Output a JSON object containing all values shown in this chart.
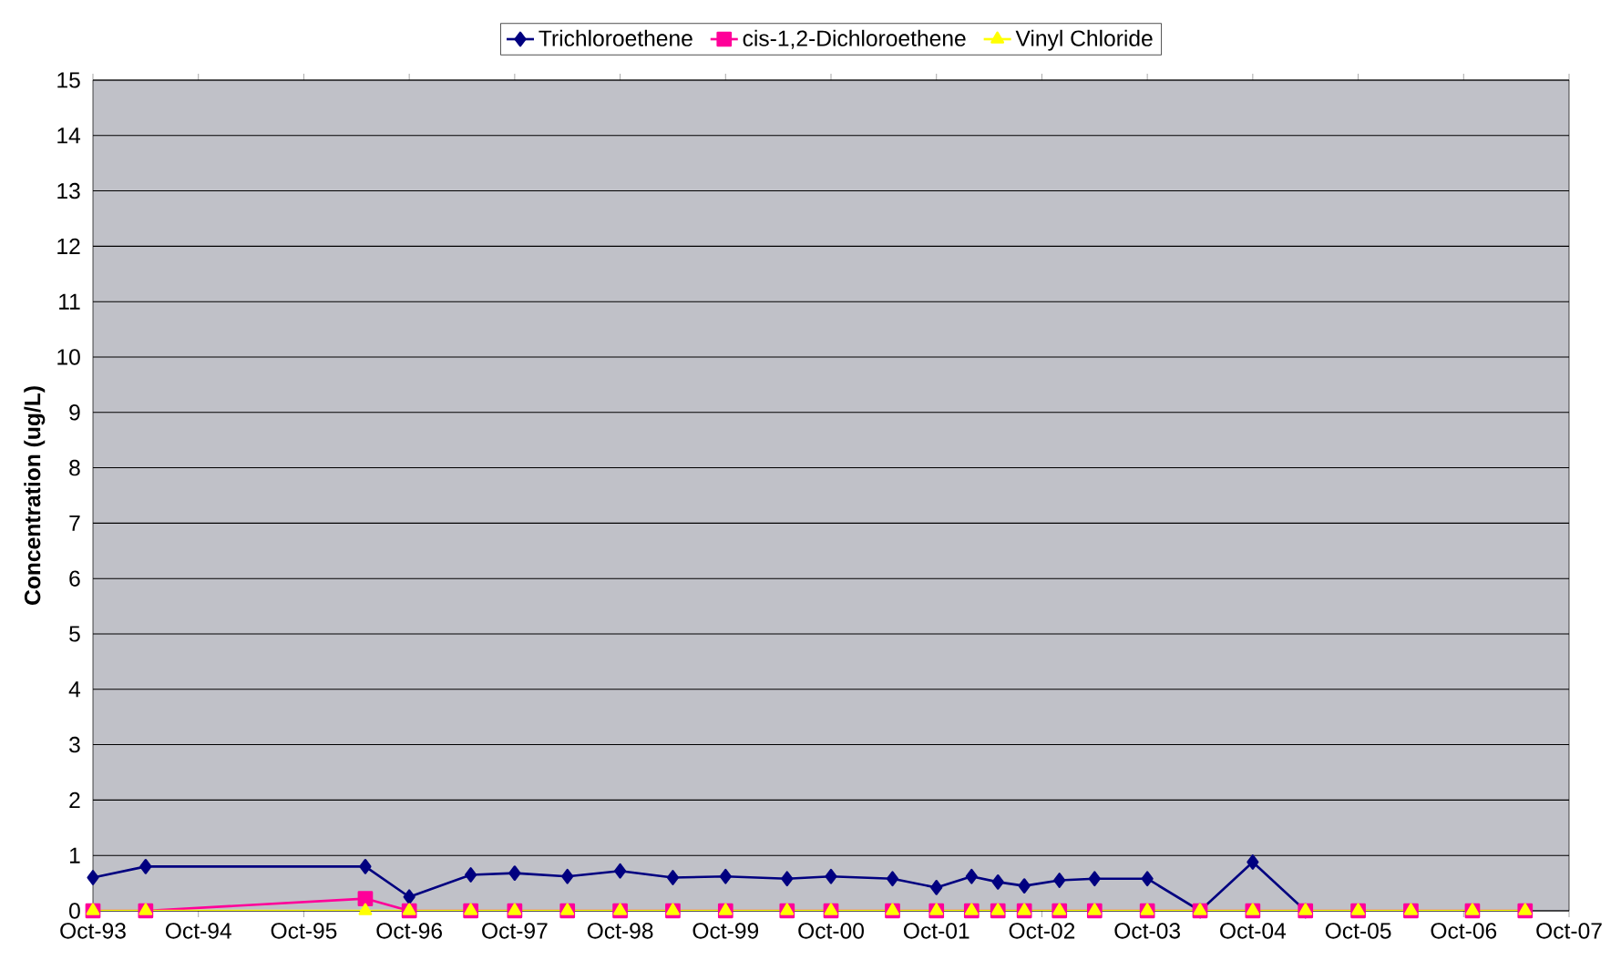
{
  "chart_data": {
    "type": "line",
    "ylabel": "Concentration (ug/L)",
    "x": [
      "1993-10",
      "1994-04",
      "1996-05",
      "1996-10",
      "1997-05",
      "1997-10",
      "1998-04",
      "1998-10",
      "1999-04",
      "1999-10",
      "2000-05",
      "2000-10",
      "2001-05",
      "2001-10",
      "2002-02",
      "2002-05",
      "2002-08",
      "2002-12",
      "2003-04",
      "2003-10",
      "2004-04",
      "2004-10",
      "2005-04",
      "2005-10",
      "2006-04",
      "2006-11",
      "2007-05"
    ],
    "series": [
      {
        "name": "Trichloroethene",
        "color": "#000080",
        "marker": "diamond",
        "values": [
          0.6,
          0.8,
          0.8,
          0.25,
          0.65,
          0.68,
          0.62,
          0.72,
          0.6,
          0.62,
          0.58,
          0.62,
          0.58,
          0.42,
          0.62,
          0.52,
          0.45,
          0.55,
          0.58,
          0.58,
          0,
          0.88,
          0,
          null,
          null,
          null,
          null
        ]
      },
      {
        "name": "cis-1,2-Dichloroethene",
        "color": "#ff0099",
        "marker": "square",
        "values": [
          0,
          0,
          0.22,
          0,
          0,
          0,
          0,
          0,
          0,
          0,
          0,
          0,
          0,
          0,
          0,
          0,
          0,
          0,
          0,
          0,
          0,
          0,
          0,
          0,
          0,
          0,
          0
        ]
      },
      {
        "name": "Vinyl Chloride",
        "color": "#ffff00",
        "marker": "triangle",
        "values": [
          0,
          0,
          0,
          0,
          0,
          0,
          0,
          0,
          0,
          0,
          0,
          0,
          0,
          0,
          0,
          0,
          0,
          0,
          0,
          0,
          0,
          0,
          0,
          0,
          0,
          0,
          0
        ]
      }
    ],
    "xlim": [
      "1993-10",
      "2007-10"
    ],
    "xticks": [
      {
        "value": "1993-10",
        "label": "Oct-93"
      },
      {
        "value": "1994-10",
        "label": "Oct-94"
      },
      {
        "value": "1995-10",
        "label": "Oct-95"
      },
      {
        "value": "1996-10",
        "label": "Oct-96"
      },
      {
        "value": "1997-10",
        "label": "Oct-97"
      },
      {
        "value": "1998-10",
        "label": "Oct-98"
      },
      {
        "value": "1999-10",
        "label": "Oct-99"
      },
      {
        "value": "2000-10",
        "label": "Oct-00"
      },
      {
        "value": "2001-10",
        "label": "Oct-01"
      },
      {
        "value": "2002-10",
        "label": "Oct-02"
      },
      {
        "value": "2003-10",
        "label": "Oct-03"
      },
      {
        "value": "2004-10",
        "label": "Oct-04"
      },
      {
        "value": "2005-10",
        "label": "Oct-05"
      },
      {
        "value": "2006-10",
        "label": "Oct-06"
      },
      {
        "value": "2007-10",
        "label": "Oct-07"
      }
    ],
    "ylim": [
      0,
      15
    ],
    "yticks": [
      0,
      1,
      2,
      3,
      4,
      5,
      6,
      7,
      8,
      9,
      10,
      11,
      12,
      13,
      14,
      15
    ],
    "grid": "y",
    "legend": "top",
    "line_style": "solid"
  }
}
